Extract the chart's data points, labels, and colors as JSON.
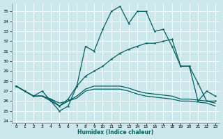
{
  "xlabel": "Humidex (Indice chaleur)",
  "bg_color": "#cce8ec",
  "line_color": "#005f5f",
  "grid_color": "#b8d8dc",
  "xlim": [
    -0.5,
    23.5
  ],
  "ylim": [
    23.8,
    35.8
  ],
  "yticks": [
    24,
    25,
    26,
    27,
    28,
    29,
    30,
    31,
    32,
    33,
    34,
    35
  ],
  "xticks": [
    0,
    1,
    2,
    3,
    4,
    5,
    6,
    7,
    8,
    9,
    10,
    11,
    12,
    13,
    14,
    15,
    16,
    17,
    18,
    19,
    20,
    21,
    22,
    23
  ],
  "line1_marked": [
    27.5,
    27.0,
    26.5,
    27.0,
    26.0,
    25.0,
    25.5,
    27.5,
    31.5,
    31.0,
    33.2,
    35.0,
    35.5,
    33.8,
    35.0,
    35.0,
    33.0,
    33.2,
    31.5,
    29.5,
    29.5,
    26.0,
    27.0,
    26.5
  ],
  "line2_marked": [
    27.5,
    27.0,
    26.5,
    26.5,
    26.2,
    25.5,
    26.2,
    27.5,
    28.5,
    29.0,
    29.5,
    30.2,
    30.8,
    31.2,
    31.5,
    31.8,
    31.8,
    32.0,
    32.2,
    29.5,
    29.5,
    27.8,
    26.0,
    26.0
  ],
  "line3_plain": [
    27.5,
    27.0,
    26.5,
    26.5,
    26.2,
    25.8,
    26.0,
    26.5,
    27.2,
    27.5,
    27.5,
    27.5,
    27.5,
    27.3,
    27.0,
    26.8,
    26.7,
    26.6,
    26.5,
    26.2,
    26.2,
    26.1,
    26.0,
    25.8
  ],
  "line4_plain": [
    27.5,
    27.0,
    26.5,
    26.5,
    26.0,
    25.5,
    26.0,
    26.3,
    27.0,
    27.2,
    27.2,
    27.2,
    27.2,
    27.0,
    26.7,
    26.5,
    26.4,
    26.3,
    26.2,
    26.0,
    26.0,
    25.9,
    25.8,
    25.5
  ]
}
